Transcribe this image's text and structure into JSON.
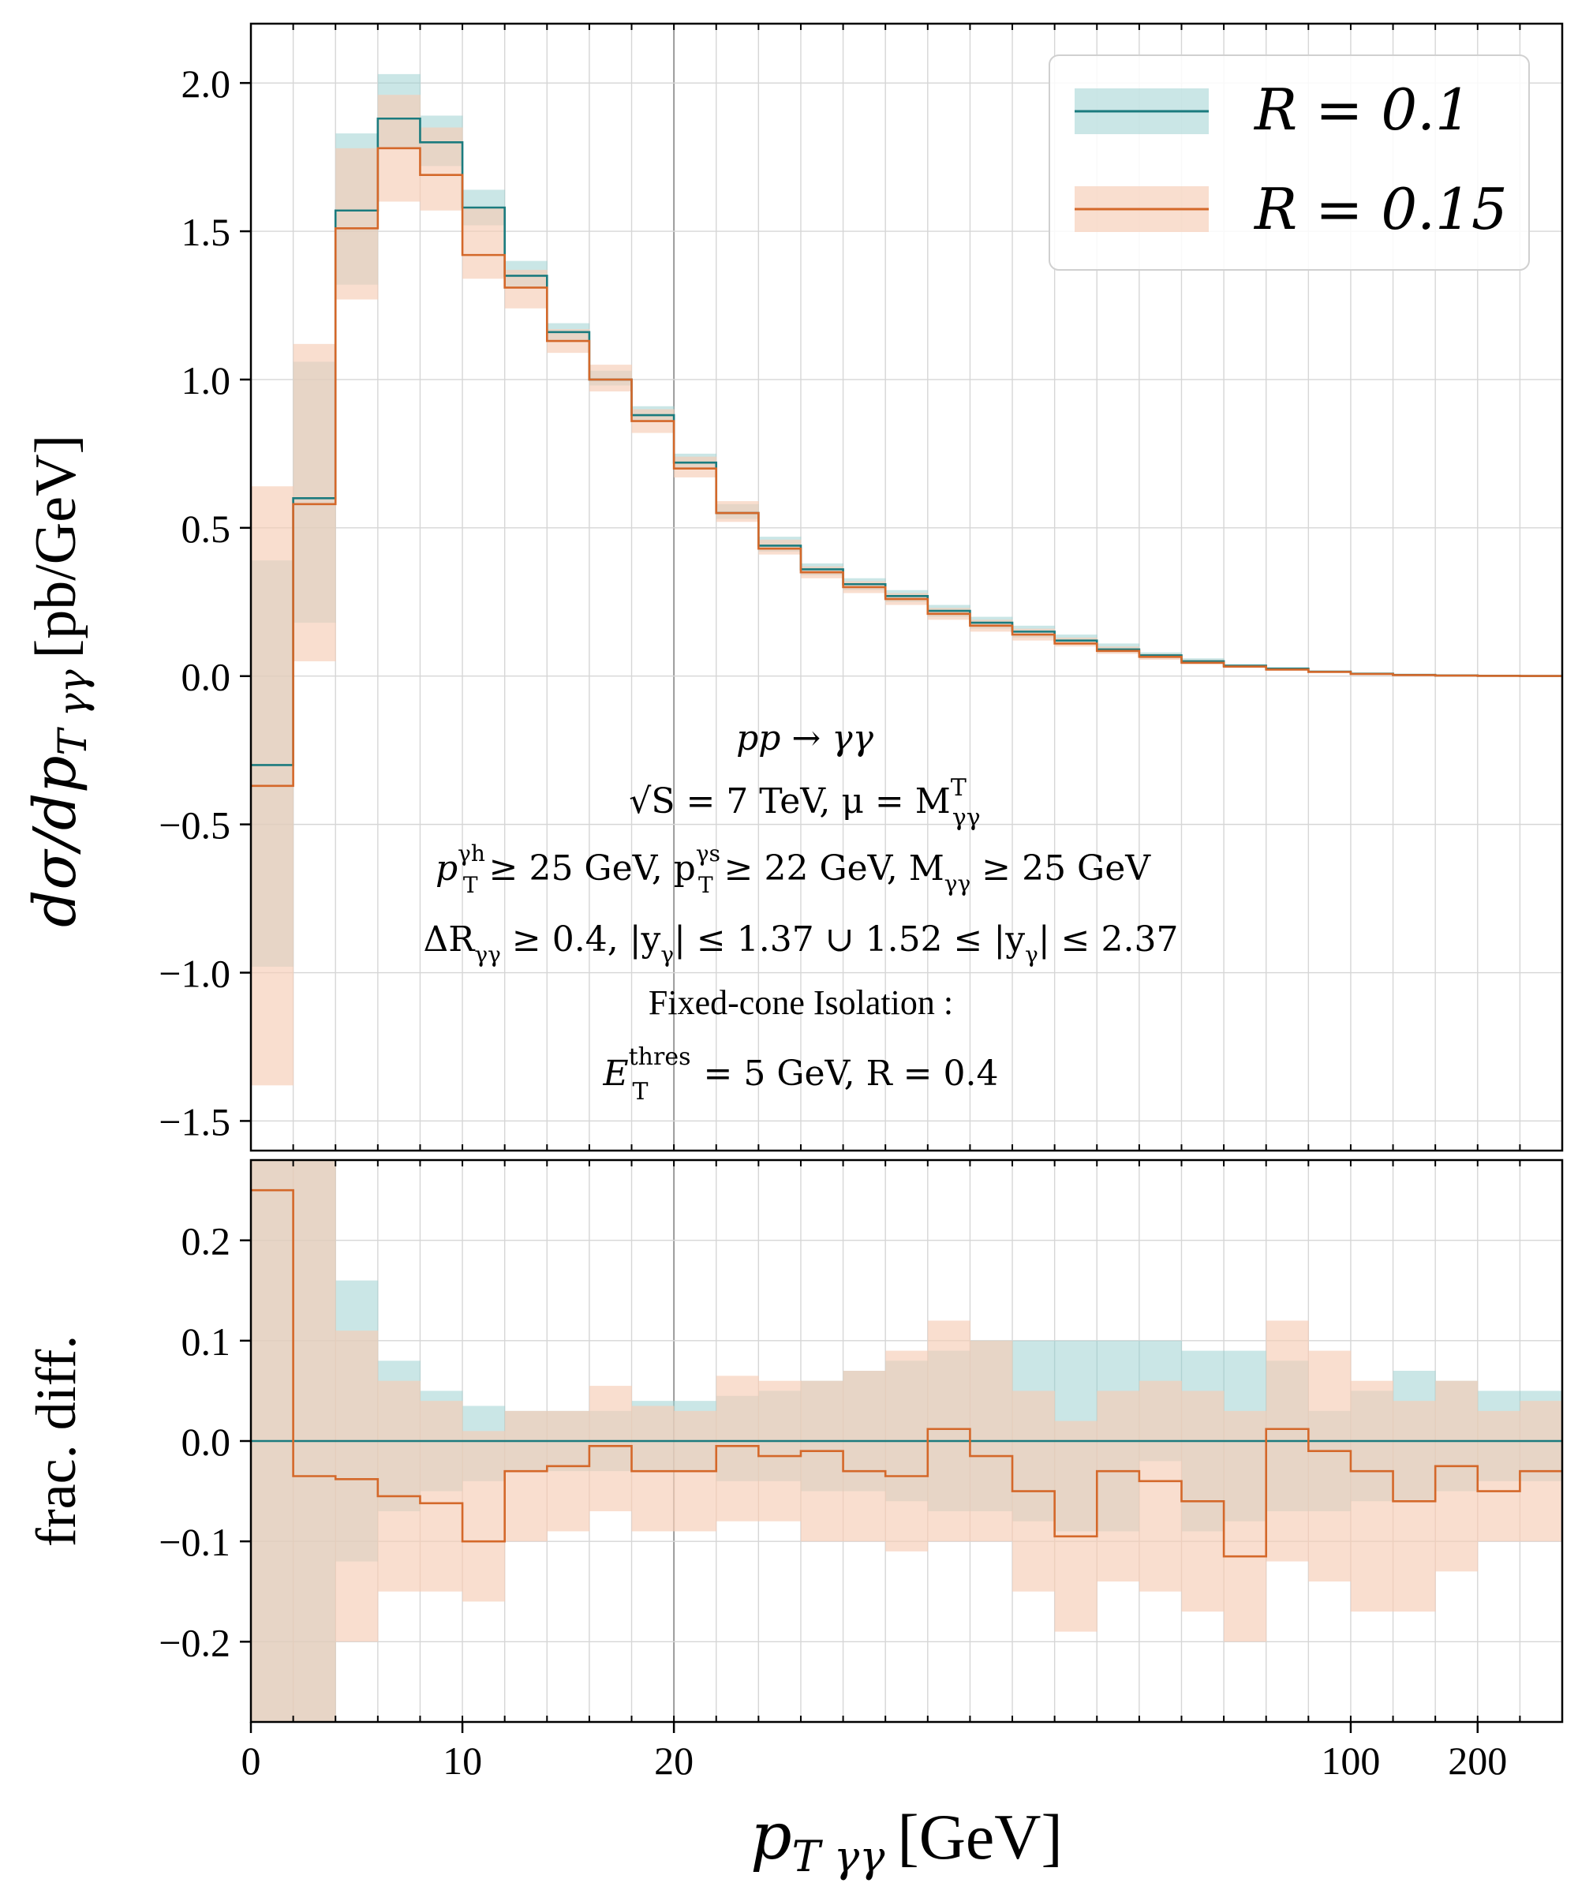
{
  "chart_data": [
    {
      "type": "step",
      "panel": "main",
      "ylabel": "dσ/dp_T γγ [pb/GeV]",
      "ylabel_main": "dσ/dp",
      "ylabel_sub": "T γγ",
      "ylabel_unit": "[pb/GeV]",
      "ylim": [
        -1.6,
        2.2
      ],
      "yticks": [
        2.0,
        1.5,
        1.0,
        0.5,
        0.0,
        -0.5,
        -1.0,
        -1.5
      ],
      "ytick_labels": [
        "2.0",
        "1.5",
        "1.0",
        "0.5",
        "0.0",
        "−0.5",
        "−1.0",
        "−1.5"
      ],
      "x_edges": [
        0,
        2,
        4,
        6,
        8,
        10,
        12,
        14,
        16,
        18,
        20,
        22,
        24,
        26,
        28,
        30,
        32,
        34,
        36,
        38,
        40,
        45,
        50,
        60,
        70,
        80,
        100,
        120,
        150,
        200,
        300,
        500
      ],
      "series": [
        {
          "name": "R = 0.1",
          "color": "#1b7b7e",
          "band_color": "#9fd2d2",
          "values": [
            -0.3,
            0.6,
            1.57,
            1.88,
            1.8,
            1.58,
            1.35,
            1.16,
            1.0,
            0.88,
            0.72,
            0.55,
            0.44,
            0.36,
            0.31,
            0.27,
            0.22,
            0.18,
            0.15,
            0.12,
            0.09,
            0.07,
            0.05,
            0.035,
            0.025,
            0.015,
            0.008,
            0.004,
            0.002,
            0.001,
            0.0005
          ],
          "band_low": [
            -0.98,
            0.18,
            1.32,
            1.78,
            1.72,
            1.52,
            1.31,
            1.13,
            0.98,
            0.86,
            0.7,
            0.53,
            0.42,
            0.34,
            0.29,
            0.25,
            0.2,
            0.16,
            0.13,
            0.11,
            0.08,
            0.06,
            0.045,
            0.03,
            0.02,
            0.012,
            0.006,
            0.003,
            0.001,
            0.0005,
            0.0002
          ],
          "band_high": [
            0.39,
            1.06,
            1.83,
            2.03,
            1.89,
            1.64,
            1.4,
            1.19,
            1.03,
            0.91,
            0.75,
            0.58,
            0.47,
            0.38,
            0.33,
            0.29,
            0.24,
            0.2,
            0.17,
            0.14,
            0.11,
            0.08,
            0.06,
            0.04,
            0.03,
            0.018,
            0.01,
            0.005,
            0.003,
            0.0015,
            0.0008
          ]
        },
        {
          "name": "R = 0.15",
          "color": "#d4682a",
          "band_color": "#f6cdb5",
          "values": [
            -0.37,
            0.58,
            1.51,
            1.78,
            1.69,
            1.42,
            1.31,
            1.13,
            1.0,
            0.86,
            0.7,
            0.55,
            0.43,
            0.35,
            0.3,
            0.26,
            0.21,
            0.17,
            0.14,
            0.11,
            0.085,
            0.065,
            0.045,
            0.032,
            0.022,
            0.014,
            0.007,
            0.0035,
            0.0018,
            0.0009,
            0.0004
          ],
          "band_low": [
            -1.38,
            0.05,
            1.27,
            1.6,
            1.57,
            1.34,
            1.24,
            1.09,
            0.96,
            0.82,
            0.67,
            0.52,
            0.41,
            0.33,
            0.28,
            0.24,
            0.19,
            0.15,
            0.12,
            0.1,
            0.075,
            0.055,
            0.04,
            0.028,
            0.018,
            0.011,
            0.005,
            0.0025,
            0.0012,
            0.0006,
            0.0002
          ],
          "band_high": [
            0.64,
            1.12,
            1.78,
            1.96,
            1.85,
            1.58,
            1.37,
            1.17,
            1.05,
            0.9,
            0.74,
            0.59,
            0.46,
            0.37,
            0.32,
            0.28,
            0.23,
            0.19,
            0.16,
            0.13,
            0.1,
            0.075,
            0.055,
            0.038,
            0.027,
            0.017,
            0.009,
            0.0045,
            0.0025,
            0.0013,
            0.0007
          ]
        }
      ],
      "legend": {
        "location": "top-right",
        "entries": [
          "R = 0.1",
          "R = 0.15"
        ]
      },
      "annotations": [
        "pp → γγ",
        "√S = 7 TeV, μ = M^T_γγ",
        "p_T^γh ≥ 25 GeV,  p_T^γs ≥ 22 GeV,  M_γγ ≥ 25 GeV",
        "ΔR_γγ ≥ 0.4,  |y_γ| ≤ 1.37 ∪ 1.52 ≤ |y_γ| ≤ 2.37",
        "Fixed-cone Isolation :",
        "E_T^thres = 5 GeV,  R = 0.4"
      ],
      "ann": {
        "l1": "pp → γγ",
        "l2a": "√S = 7 TeV, μ = M",
        "l2sup": "T",
        "l2sub": "γγ",
        "l3a": "p",
        "l3sup1": "γh",
        "l3sub1": "T",
        "l3b": " ≥ 25 GeV,  p",
        "l3sup2": "γs",
        "l3sub2": "T",
        "l3c": " ≥ 22 GeV,  M",
        "l3sub3": "γγ",
        "l3d": " ≥ 25 GeV",
        "l4a": "ΔR",
        "l4sub": "γγ",
        "l4b": " ≥ 0.4,  |y",
        "l4sub2": "γ",
        "l4c": "| ≤ 1.37 ∪ 1.52 ≤ |y",
        "l4sub3": "γ",
        "l4d": "| ≤ 2.37",
        "l5": "Fixed-cone Isolation :",
        "l6a": "E",
        "l6sup": "thres",
        "l6sub": "T",
        "l6b": " = 5 GeV,  R = 0.4"
      },
      "grid": true
    },
    {
      "type": "step",
      "panel": "ratio",
      "ylabel": "frac. diff.",
      "ylim": [
        -0.28,
        0.28
      ],
      "yticks": [
        0.2,
        0.1,
        0.0,
        -0.1,
        -0.2
      ],
      "ytick_labels": [
        "0.2",
        "0.1",
        "0.0",
        "−0.1",
        "−0.2"
      ],
      "xlabel": "p_T γγ [GeV]",
      "xlabel_main": "p",
      "xlabel_sub": "T γγ",
      "xlabel_unit": "[GeV]",
      "xticks": [
        0,
        10,
        20,
        100,
        200
      ],
      "xtick_labels": [
        "0",
        "10",
        "20",
        "100",
        "200"
      ],
      "series": [
        {
          "name": "R = 0.1",
          "color": "#1b7b7e",
          "band_color": "#9fd2d2",
          "values": [
            0.0,
            0.0,
            0.0,
            0.0,
            0.0,
            0.0,
            0.0,
            0.0,
            0.0,
            0.0,
            0.0,
            0.0,
            0.0,
            0.0,
            0.0,
            0.0,
            0.0,
            0.0,
            0.0,
            0.0,
            0.0,
            0.0,
            0.0,
            0.0,
            0.0,
            0.0,
            0.0,
            0.0,
            0.0,
            0.0,
            0.0
          ],
          "band_low": [
            -0.28,
            -0.28,
            -0.12,
            -0.07,
            -0.05,
            -0.04,
            -0.03,
            -0.03,
            -0.03,
            -0.03,
            -0.03,
            -0.04,
            -0.04,
            -0.05,
            -0.05,
            -0.06,
            -0.07,
            -0.07,
            -0.08,
            -0.09,
            -0.09,
            -0.02,
            -0.09,
            -0.08,
            -0.07,
            -0.07,
            -0.06,
            -0.06,
            -0.05,
            -0.04,
            -0.04
          ],
          "band_high": [
            0.28,
            0.28,
            0.16,
            0.08,
            0.05,
            0.035,
            0.03,
            0.03,
            0.03,
            0.04,
            0.04,
            0.045,
            0.05,
            0.06,
            0.07,
            0.08,
            0.09,
            0.1,
            0.1,
            0.1,
            0.1,
            0.1,
            0.09,
            0.09,
            0.08,
            0.03,
            0.05,
            0.07,
            0.06,
            0.05,
            0.05
          ]
        },
        {
          "name": "R = 0.15",
          "color": "#d4682a",
          "band_color": "#f6cdb5",
          "values": [
            0.25,
            -0.035,
            -0.038,
            -0.055,
            -0.062,
            -0.1,
            -0.03,
            -0.025,
            -0.005,
            -0.03,
            -0.03,
            -0.005,
            -0.015,
            -0.01,
            -0.03,
            -0.035,
            0.012,
            -0.015,
            -0.05,
            -0.095,
            -0.03,
            -0.04,
            -0.06,
            -0.115,
            0.012,
            -0.01,
            -0.03,
            -0.06,
            -0.025,
            -0.05,
            -0.03
          ],
          "band_low": [
            -0.28,
            -0.28,
            -0.2,
            -0.15,
            -0.15,
            -0.16,
            -0.1,
            -0.09,
            -0.07,
            -0.09,
            -0.09,
            -0.08,
            -0.08,
            -0.1,
            -0.1,
            -0.11,
            -0.1,
            -0.1,
            -0.15,
            -0.19,
            -0.14,
            -0.15,
            -0.17,
            -0.2,
            -0.12,
            -0.14,
            -0.17,
            -0.17,
            -0.13,
            -0.1,
            -0.1
          ],
          "band_high": [
            0.28,
            0.28,
            0.11,
            0.06,
            0.04,
            0.01,
            0.03,
            0.03,
            0.055,
            0.035,
            0.03,
            0.065,
            0.06,
            0.06,
            0.07,
            0.09,
            0.12,
            0.1,
            0.05,
            0.02,
            0.05,
            0.06,
            0.05,
            0.03,
            0.12,
            0.09,
            0.06,
            0.04,
            0.06,
            0.03,
            0.04
          ]
        }
      ],
      "grid": true
    }
  ]
}
